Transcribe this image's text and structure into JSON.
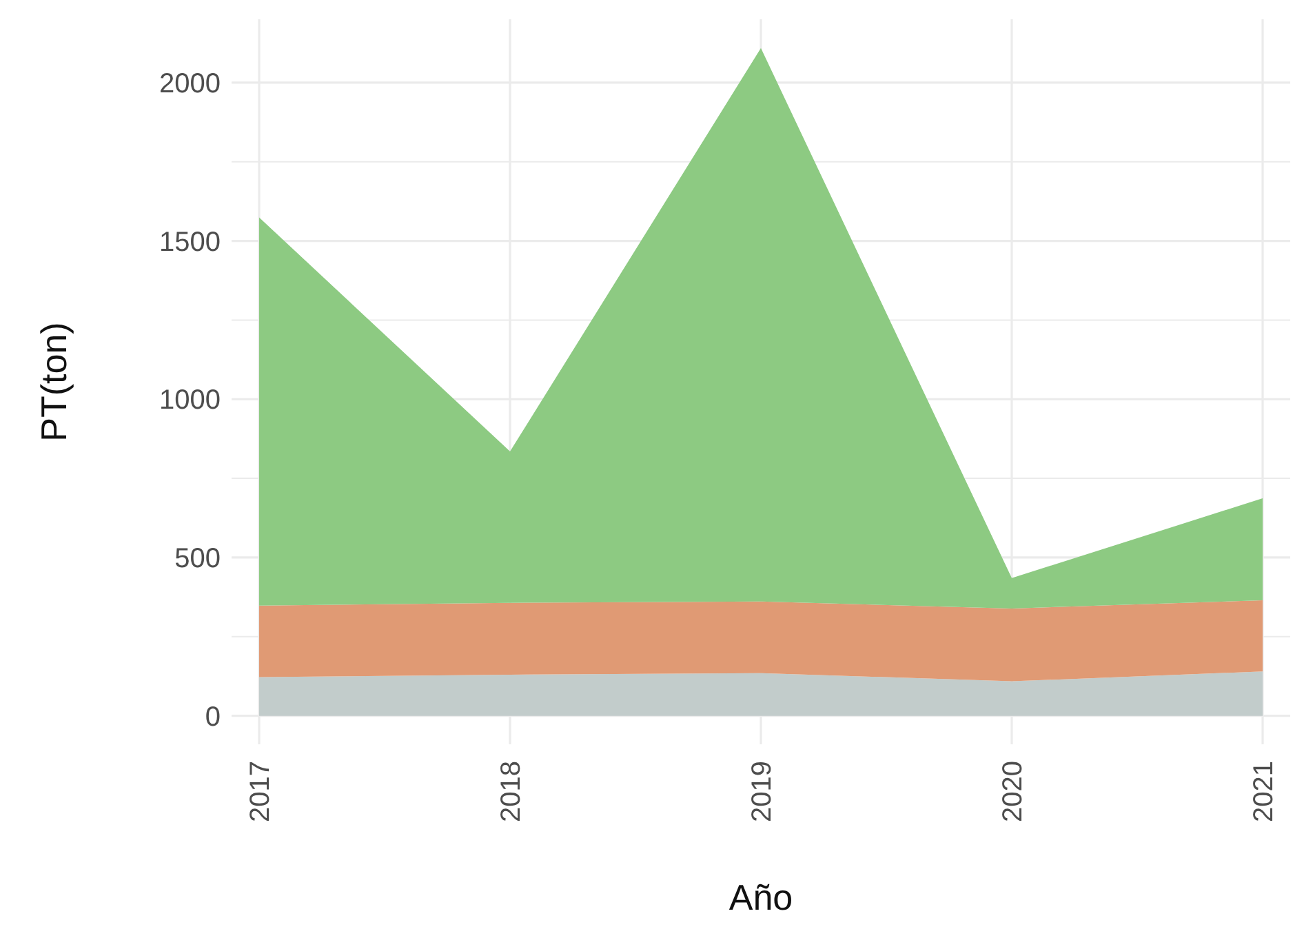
{
  "chart_data": {
    "type": "area",
    "stacked": true,
    "xlabel": "Año",
    "ylabel": "PT(ton)",
    "x": [
      2017,
      2018,
      2019,
      2020,
      2021
    ],
    "xlim": [
      2017,
      2021
    ],
    "xticks": [
      2017,
      2018,
      2019,
      2020,
      2021
    ],
    "ylim": [
      -90,
      2200
    ],
    "yticks": [
      0,
      {
        "value": 250,
        "label": null
      },
      500,
      {
        "value": 750,
        "label": null
      },
      1000,
      {
        "value": 1250,
        "label": null
      },
      1500,
      {
        "value": 1750,
        "label": null
      },
      2000
    ],
    "grid": true,
    "series": [
      {
        "color": "#c2cccb",
        "values": [
          122,
          130,
          135,
          109,
          140
        ]
      },
      {
        "color": "#e09a74",
        "values": [
          226,
          227,
          226,
          230,
          225
        ]
      },
      {
        "color": "#8dca82",
        "values": [
          1226,
          478,
          1748,
          96,
          322
        ]
      }
    ]
  }
}
